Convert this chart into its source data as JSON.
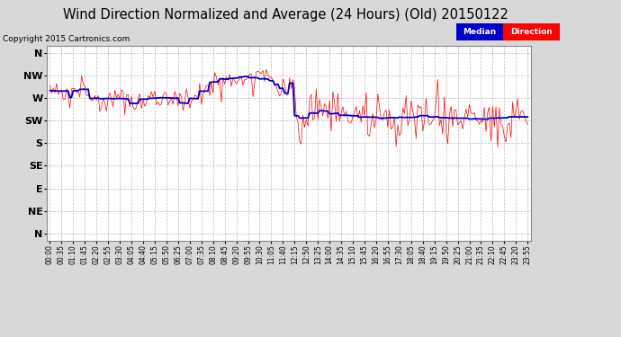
{
  "title": "Wind Direction Normalized and Average (24 Hours) (Old) 20150122",
  "copyright": "Copyright 2015 Cartronics.com",
  "ytick_labels": [
    "N",
    "NW",
    "W",
    "SW",
    "S",
    "SE",
    "E",
    "NE",
    "N"
  ],
  "ytick_values": [
    0,
    45,
    90,
    135,
    180,
    225,
    270,
    315,
    360
  ],
  "ylim": [
    375,
    -15
  ],
  "bg_color": "#d8d8d8",
  "plot_bg_color": "#ffffff",
  "grid_color": "#aaaaaa",
  "red_color": "#ff0000",
  "blue_color": "#0000cc",
  "legend_median_bg": "#0000cc",
  "legend_direction_bg": "#ff0000",
  "legend_text_color": "#ffffff",
  "title_fontsize": 10.5,
  "copyright_fontsize": 6.5,
  "n_points": 288,
  "xtick_step": 7
}
